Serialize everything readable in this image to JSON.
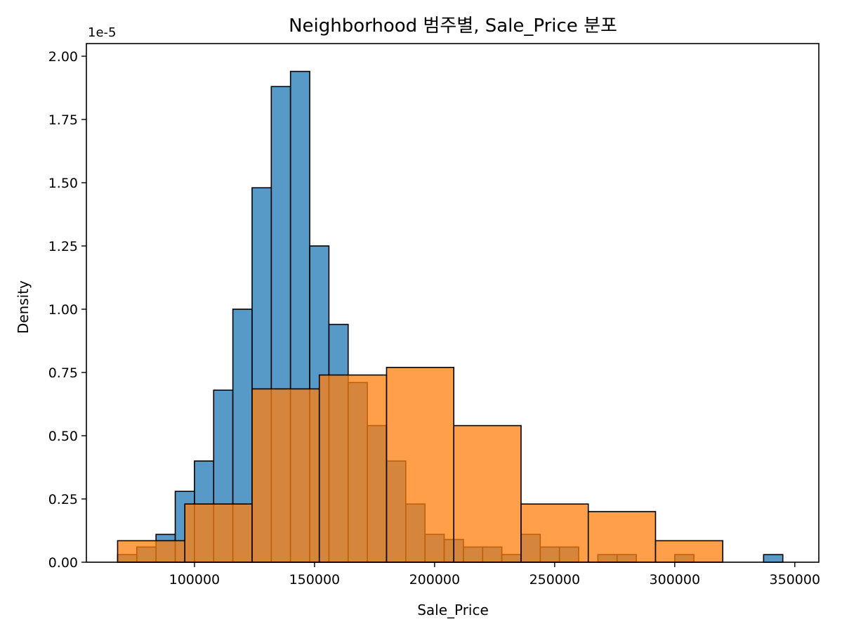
{
  "chart_data": {
    "type": "bar",
    "title": "Neighborhood 범주별, Sale_Price 분포",
    "xlabel": "Sale_Price",
    "ylabel": "Density",
    "y_offset_label": "1e-5",
    "xlim": [
      55000,
      360000
    ],
    "ylim": [
      0,
      2.05
    ],
    "xticks": [
      100000,
      150000,
      200000,
      250000,
      300000,
      350000
    ],
    "yticks": [
      0.0,
      0.25,
      0.5,
      0.75,
      1.0,
      1.25,
      1.5,
      1.75,
      2.0
    ],
    "ytick_labels": [
      "0.00",
      "0.25",
      "0.50",
      "0.75",
      "1.00",
      "1.25",
      "1.50",
      "1.75",
      "2.00"
    ],
    "grid": false,
    "legend": "none",
    "series": [
      {
        "color": "#1f77b4",
        "bins": [
          {
            "x0": 84000,
            "x1": 92000,
            "y": 0.11
          },
          {
            "x0": 92000,
            "x1": 100000,
            "y": 0.28
          },
          {
            "x0": 100000,
            "x1": 108000,
            "y": 0.4
          },
          {
            "x0": 108000,
            "x1": 116000,
            "y": 0.68
          },
          {
            "x0": 116000,
            "x1": 124000,
            "y": 1.0
          },
          {
            "x0": 124000,
            "x1": 132000,
            "y": 1.48
          },
          {
            "x0": 132000,
            "x1": 140000,
            "y": 1.88
          },
          {
            "x0": 140000,
            "x1": 148000,
            "y": 1.94
          },
          {
            "x0": 148000,
            "x1": 156000,
            "y": 1.25
          },
          {
            "x0": 156000,
            "x1": 164000,
            "y": 0.94
          },
          {
            "x0": 164000,
            "x1": 172000,
            "y": 0.71
          },
          {
            "x0": 172000,
            "x1": 180000,
            "y": 0.54
          },
          {
            "x0": 180000,
            "x1": 188000,
            "y": 0.4
          },
          {
            "x0": 188000,
            "x1": 196000,
            "y": 0.23
          },
          {
            "x0": 196000,
            "x1": 204000,
            "y": 0.11
          },
          {
            "x0": 204000,
            "x1": 212000,
            "y": 0.09
          },
          {
            "x0": 212000,
            "x1": 220000,
            "y": 0.06
          },
          {
            "x0": 220000,
            "x1": 228000,
            "y": 0.06
          },
          {
            "x0": 228000,
            "x1": 236000,
            "y": 0.03
          },
          {
            "x0": 236000,
            "x1": 244000,
            "y": 0.11
          },
          {
            "x0": 244000,
            "x1": 252000,
            "y": 0.06
          },
          {
            "x0": 252000,
            "x1": 260000,
            "y": 0.06
          },
          {
            "x0": 268000,
            "x1": 276000,
            "y": 0.03
          },
          {
            "x0": 276000,
            "x1": 284000,
            "y": 0.03
          },
          {
            "x0": 300000,
            "x1": 308000,
            "y": 0.03
          },
          {
            "x0": 337000,
            "x1": 345000,
            "y": 0.03
          },
          {
            "x0": 68000,
            "x1": 76000,
            "y": 0.03
          },
          {
            "x0": 76000,
            "x1": 84000,
            "y": 0.06
          }
        ]
      },
      {
        "color": "#ff7f0e",
        "bins": [
          {
            "x0": 68000,
            "x1": 96000,
            "y": 0.085
          },
          {
            "x0": 96000,
            "x1": 124000,
            "y": 0.23
          },
          {
            "x0": 124000,
            "x1": 152000,
            "y": 0.685
          },
          {
            "x0": 152000,
            "x1": 180000,
            "y": 0.74
          },
          {
            "x0": 180000,
            "x1": 208000,
            "y": 0.77
          },
          {
            "x0": 208000,
            "x1": 236000,
            "y": 0.54
          },
          {
            "x0": 236000,
            "x1": 264000,
            "y": 0.23
          },
          {
            "x0": 264000,
            "x1": 292000,
            "y": 0.2
          },
          {
            "x0": 292000,
            "x1": 320000,
            "y": 0.085
          }
        ]
      }
    ]
  }
}
